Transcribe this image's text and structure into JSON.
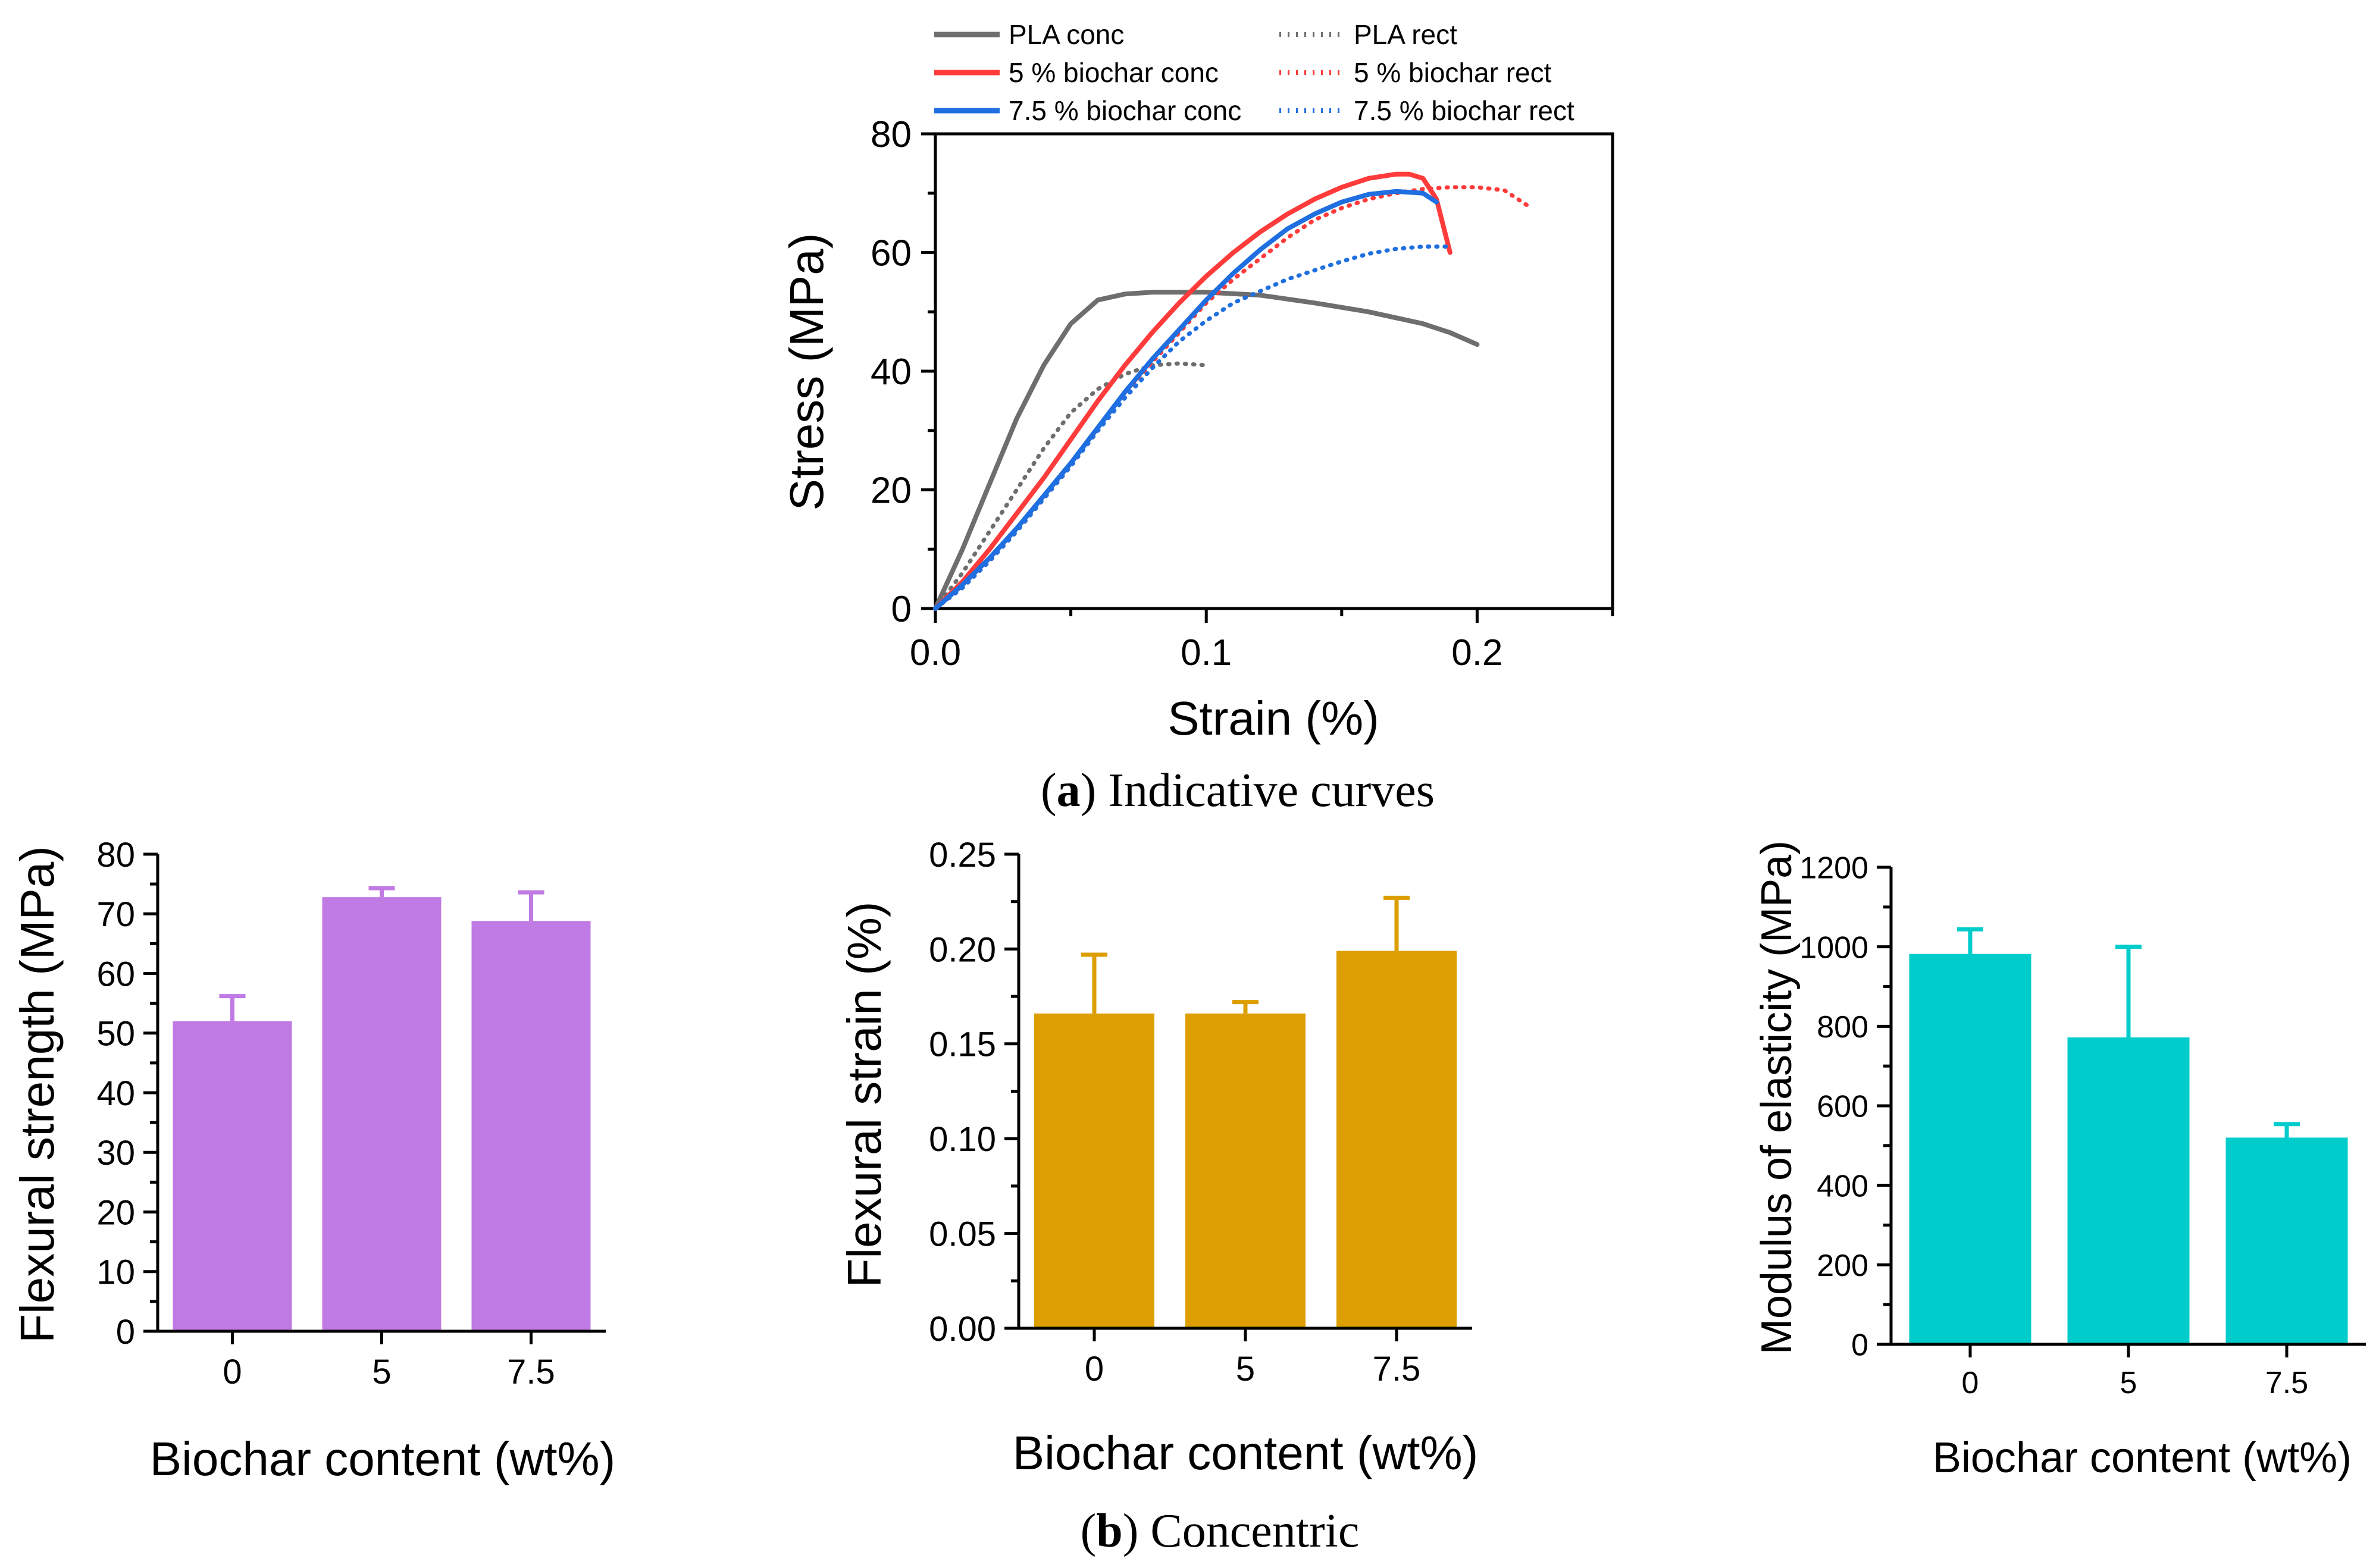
{
  "figure": {
    "caption_a_letter": "a",
    "caption_a_text": ") Indicative curves",
    "caption_b_letter": "b",
    "caption_b_text": ") Concentric",
    "caption_open": "("
  },
  "chart_data": [
    {
      "id": "a",
      "type": "line",
      "xlabel": "Strain (%)",
      "ylabel": "Stress (MPa)",
      "xlim": [
        0,
        0.25
      ],
      "ylim": [
        0,
        80
      ],
      "xticks": [
        0.0,
        0.1,
        0.2
      ],
      "xtick_labels": [
        "0.0",
        "0.1",
        "0.2"
      ],
      "yticks": [
        0,
        20,
        40,
        60,
        80
      ],
      "ytick_labels": [
        "0",
        "20",
        "40",
        "60",
        "80"
      ],
      "legend_position": "top",
      "series": [
        {
          "name": "PLA conc",
          "color": "#6e6e6e",
          "style": "solid",
          "x": [
            0,
            0.01,
            0.02,
            0.03,
            0.04,
            0.05,
            0.06,
            0.07,
            0.08,
            0.09,
            0.1,
            0.12,
            0.14,
            0.16,
            0.18,
            0.19,
            0.2
          ],
          "y": [
            0,
            10,
            21,
            32,
            41,
            48,
            52,
            53,
            53.3,
            53.3,
            53.3,
            52.8,
            51.5,
            50,
            48,
            46.5,
            44.5
          ]
        },
        {
          "name": "PLA rect",
          "color": "#6e6e6e",
          "style": "dotted",
          "x": [
            0,
            0.01,
            0.02,
            0.03,
            0.04,
            0.05,
            0.06,
            0.07,
            0.08,
            0.09,
            0.1
          ],
          "y": [
            0,
            6,
            13,
            20,
            27,
            33,
            37,
            39.5,
            41,
            41.3,
            41
          ]
        },
        {
          "name": "5 % biochar conc",
          "color": "#ff3b3b",
          "style": "solid",
          "x": [
            0,
            0.01,
            0.02,
            0.03,
            0.04,
            0.05,
            0.06,
            0.07,
            0.08,
            0.09,
            0.1,
            0.11,
            0.12,
            0.13,
            0.14,
            0.15,
            0.16,
            0.17,
            0.175,
            0.18,
            0.185,
            0.19
          ],
          "y": [
            0,
            4.5,
            10,
            16,
            22,
            28.5,
            35,
            41,
            46.5,
            51.5,
            56,
            60,
            63.5,
            66.5,
            69,
            71,
            72.5,
            73.2,
            73.2,
            72.5,
            69,
            60
          ]
        },
        {
          "name": "5 % biochar rect",
          "color": "#ff3b3b",
          "style": "dotted",
          "x": [
            0,
            0.01,
            0.02,
            0.03,
            0.04,
            0.05,
            0.06,
            0.07,
            0.08,
            0.09,
            0.1,
            0.11,
            0.12,
            0.13,
            0.14,
            0.15,
            0.16,
            0.17,
            0.18,
            0.19,
            0.2,
            0.21,
            0.22
          ],
          "y": [
            0,
            3.5,
            8,
            13,
            18.5,
            24,
            30,
            36,
            41.5,
            46.5,
            51.5,
            55.5,
            59,
            62.5,
            65.5,
            67.5,
            69,
            70,
            70.7,
            71,
            71,
            70.5,
            67.5
          ]
        },
        {
          "name": "7.5 % biochar conc",
          "color": "#1f6fe0",
          "style": "solid",
          "x": [
            0,
            0.01,
            0.02,
            0.03,
            0.04,
            0.05,
            0.06,
            0.07,
            0.08,
            0.09,
            0.1,
            0.11,
            0.12,
            0.13,
            0.14,
            0.15,
            0.16,
            0.17,
            0.18,
            0.185
          ],
          "y": [
            0,
            4,
            8.5,
            13.5,
            19,
            24.5,
            30.5,
            36.5,
            42,
            47,
            52,
            56.5,
            60.5,
            64,
            66.5,
            68.5,
            69.8,
            70.3,
            70,
            68.5
          ]
        },
        {
          "name": "7.5 % biochar rect",
          "color": "#1f6fe0",
          "style": "dotted",
          "x": [
            0,
            0.01,
            0.02,
            0.03,
            0.04,
            0.05,
            0.06,
            0.07,
            0.08,
            0.09,
            0.1,
            0.11,
            0.12,
            0.13,
            0.14,
            0.15,
            0.16,
            0.17,
            0.18,
            0.19
          ],
          "y": [
            0,
            3.5,
            8,
            13,
            18.5,
            24,
            30,
            35.5,
            40.5,
            45,
            48.5,
            51.5,
            53.5,
            55.5,
            57,
            58.5,
            59.8,
            60.6,
            61,
            61
          ]
        }
      ]
    },
    {
      "id": "b1",
      "type": "bar",
      "categories": [
        "0",
        "5",
        "7.5"
      ],
      "values": [
        52,
        72.8,
        68.8
      ],
      "errors": [
        4.2,
        1.5,
        4.8
      ],
      "color": "#c07ae4",
      "xlabel": "Biochar content (wt%)",
      "ylabel": "Flexural strength (MPa)",
      "ylim": [
        0,
        80
      ],
      "yticks": [
        0,
        10,
        20,
        30,
        40,
        50,
        60,
        70,
        80
      ],
      "ytick_labels": [
        "0",
        "10",
        "20",
        "30",
        "40",
        "50",
        "60",
        "70",
        "80"
      ]
    },
    {
      "id": "b2",
      "type": "bar",
      "categories": [
        "0",
        "5",
        "7.5"
      ],
      "values": [
        0.166,
        0.166,
        0.199
      ],
      "errors": [
        0.031,
        0.006,
        0.028
      ],
      "color": "#dc9e00",
      "xlabel": "Biochar content (wt%)",
      "ylabel": "Flexural strain (%)",
      "ylim": [
        0,
        0.25
      ],
      "yticks": [
        0,
        0.05,
        0.1,
        0.15,
        0.2,
        0.25
      ],
      "ytick_labels": [
        "0.00",
        "0.05",
        "0.10",
        "0.15",
        "0.20",
        "0.25"
      ]
    },
    {
      "id": "b3",
      "type": "bar",
      "categories": [
        "0",
        "5",
        "7.5"
      ],
      "values": [
        982,
        772,
        520
      ],
      "errors": [
        62,
        228,
        34
      ],
      "color": "#00cccc",
      "xlabel": "Biochar content (wt%)",
      "ylabel": "Modulus of elasticity (MPa)",
      "ylim": [
        0,
        1200
      ],
      "yticks": [
        0,
        200,
        400,
        600,
        800,
        1000,
        1200
      ],
      "ytick_labels": [
        "0",
        "200",
        "400",
        "600",
        "800",
        "1000",
        "1200"
      ]
    }
  ]
}
